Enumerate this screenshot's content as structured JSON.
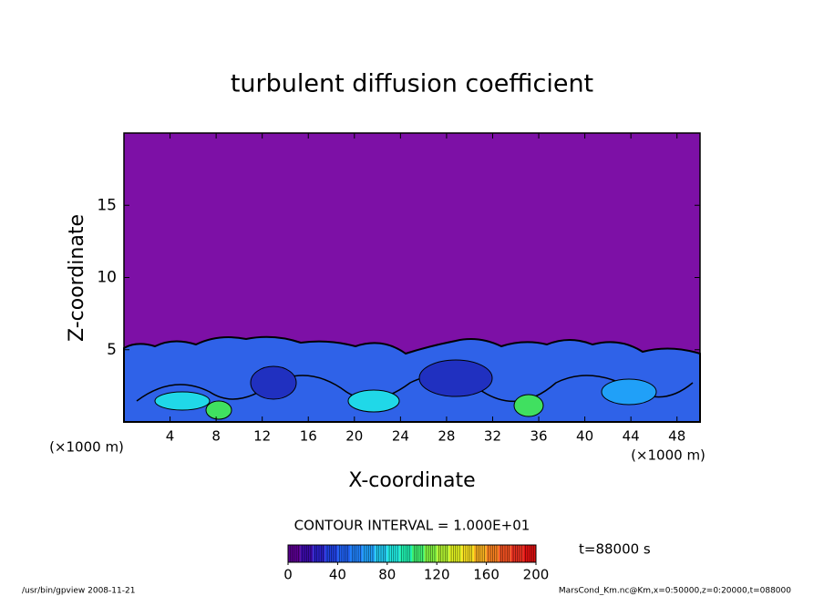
{
  "chart_data": {
    "type": "contour",
    "title": "turbulent diffusion coefficient",
    "xlabel": "X-coordinate",
    "ylabel": "Z-coordinate",
    "xunits": "(×1000 m)",
    "yunits": "(×1000 m)",
    "xlim": [
      0,
      50
    ],
    "ylim": [
      0,
      20
    ],
    "xticks": [
      4,
      8,
      12,
      16,
      20,
      24,
      28,
      32,
      36,
      40,
      44,
      48
    ],
    "yticks": [
      5,
      10,
      15
    ],
    "contour_interval": "CONTOUR INTERVAL = 1.000E+01",
    "time_label": "t=88000 s",
    "colorbar": {
      "lim": [
        0,
        200
      ],
      "ticks": [
        0,
        40,
        80,
        120,
        160,
        200
      ],
      "levels": [
        0,
        10,
        20,
        30,
        40,
        50,
        60,
        70,
        80,
        90,
        100,
        110,
        120,
        130,
        140,
        150,
        160,
        170,
        180,
        190,
        200
      ],
      "colors": [
        "#5a0090",
        "#3a0aa8",
        "#2a20c8",
        "#2040e0",
        "#2060f0",
        "#2080f8",
        "#20a0f8",
        "#20c8f0",
        "#20e8e0",
        "#20f0b0",
        "#40f070",
        "#80f040",
        "#b0f030",
        "#e0f020",
        "#f8e020",
        "#f8b020",
        "#f88020",
        "#f05020",
        "#e83020",
        "#e01010"
      ]
    },
    "footer_left": "/usr/bin/gpview  2008-11-21",
    "footer_right": "MarsCond_Km.nc@Km,x=0:50000,z=0:20000,t=088000"
  }
}
